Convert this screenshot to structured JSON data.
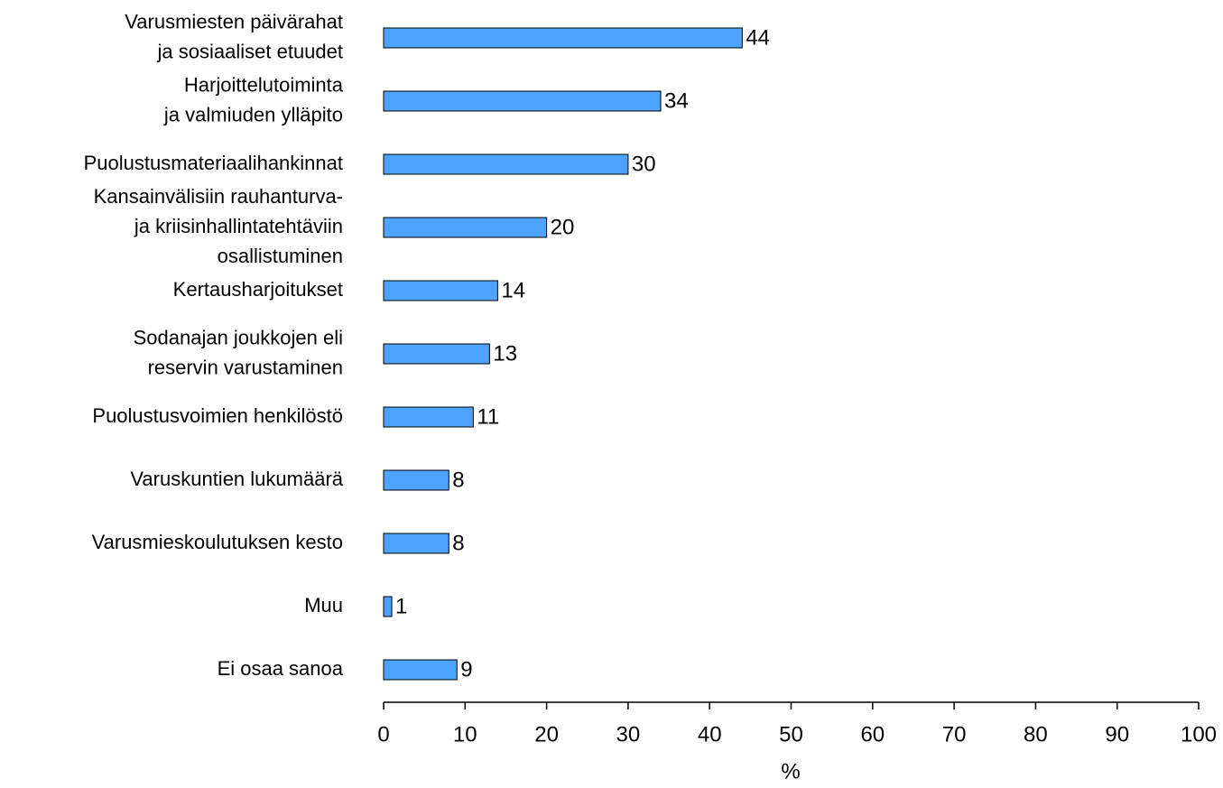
{
  "chart_data": {
    "type": "bar",
    "orientation": "horizontal",
    "categories": [
      "Varusmiesten päivärahat\nja sosiaaliset etuudet",
      "Harjoittelutoiminta\nja valmiuden ylläpito",
      "Puolustusmateriaalihankinnat",
      "Kansainvälisiin rauhanturva-\nja kriisinhallintatehtäviin\nosallistuminen",
      "Kertausharjoitukset",
      "Sodanajan joukkojen eli\nreservin varustaminen",
      "Puolustusvoimien henkilöstö",
      "Varuskuntien lukumäärä",
      "Varusmieskoulutuksen kesto",
      "Muu",
      "Ei osaa sanoa"
    ],
    "values": [
      44,
      34,
      30,
      20,
      14,
      13,
      11,
      8,
      8,
      1,
      9
    ],
    "color": "#4da3ff",
    "xlabel": "%",
    "xlim": [
      0,
      100
    ],
    "xticks": [
      0,
      10,
      20,
      30,
      40,
      50,
      60,
      70,
      80,
      90,
      100
    ]
  }
}
